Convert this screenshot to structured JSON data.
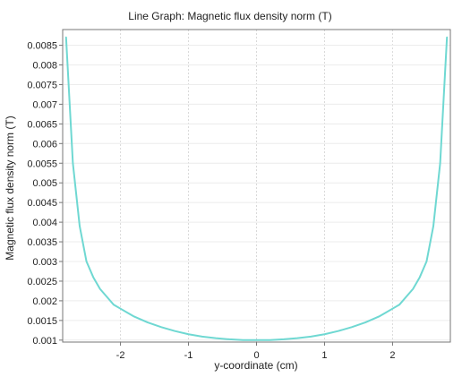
{
  "chart_data": {
    "type": "line",
    "title": "Line Graph: Magnetic flux density norm (T)",
    "xlabel": "y-coordinate (cm)",
    "ylabel": "Magnetic flux density norm (T)",
    "xlim": [
      -2.85,
      2.85
    ],
    "ylim": [
      0.00095,
      0.0089
    ],
    "x_ticks": [
      -2,
      -1,
      0,
      1,
      2
    ],
    "x_tick_labels": [
      "-2",
      "-1",
      "0",
      "1",
      "2"
    ],
    "y_ticks": [
      0.001,
      0.0015,
      0.002,
      0.0025,
      0.003,
      0.0035,
      0.004,
      0.0045,
      0.005,
      0.0055,
      0.006,
      0.0065,
      0.007,
      0.0075,
      0.008,
      0.0085
    ],
    "y_tick_labels": [
      "0.001",
      "0.0015",
      "0.002",
      "0.0025",
      "0.003",
      "0.0035",
      "0.004",
      "0.0045",
      "0.005",
      "0.0055",
      "0.006",
      "0.0065",
      "0.007",
      "0.0075",
      "0.008",
      "0.0085"
    ],
    "grid": true,
    "series": [
      {
        "color": "#6fd8d2",
        "x": [
          -2.8,
          -2.7,
          -2.6,
          -2.5,
          -2.4,
          -2.3,
          -2.2,
          -2.1,
          -2.0,
          -1.9,
          -1.8,
          -1.6,
          -1.4,
          -1.2,
          -1.0,
          -0.8,
          -0.6,
          -0.4,
          -0.2,
          0.0,
          0.2,
          0.4,
          0.6,
          0.8,
          1.0,
          1.2,
          1.4,
          1.6,
          1.8,
          1.9,
          2.0,
          2.1,
          2.2,
          2.3,
          2.4,
          2.5,
          2.6,
          2.7,
          2.8
        ],
        "y": [
          0.0087,
          0.0055,
          0.0039,
          0.003,
          0.0026,
          0.0023,
          0.0021,
          0.0019,
          0.0018,
          0.0017,
          0.0016,
          0.00145,
          0.00133,
          0.00123,
          0.00115,
          0.00109,
          0.00105,
          0.00102,
          0.001,
          0.001,
          0.001,
          0.00102,
          0.00105,
          0.00109,
          0.00115,
          0.00123,
          0.00133,
          0.00145,
          0.0016,
          0.0017,
          0.0018,
          0.0019,
          0.0021,
          0.0023,
          0.0026,
          0.003,
          0.0039,
          0.0055,
          0.0087
        ]
      }
    ]
  }
}
